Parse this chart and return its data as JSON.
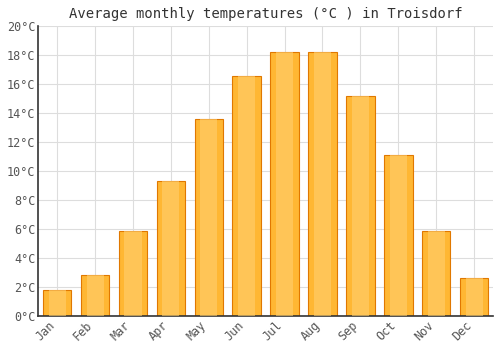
{
  "title": "Average monthly temperatures (°C ) in Troisdorf",
  "months": [
    "Jan",
    "Feb",
    "Mar",
    "Apr",
    "May",
    "Jun",
    "Jul",
    "Aug",
    "Sep",
    "Oct",
    "Nov",
    "Dec"
  ],
  "temperatures": [
    1.8,
    2.8,
    5.9,
    9.3,
    13.6,
    16.6,
    18.2,
    18.2,
    15.2,
    11.1,
    5.9,
    2.6
  ],
  "bar_color_center": "#FFB733",
  "bar_color_edge": "#E07800",
  "background_color": "#FFFFFF",
  "grid_color": "#DDDDDD",
  "ylim": [
    0,
    20
  ],
  "yticks": [
    0,
    2,
    4,
    6,
    8,
    10,
    12,
    14,
    16,
    18,
    20
  ],
  "title_fontsize": 10,
  "tick_fontsize": 8.5,
  "font_family": "monospace"
}
